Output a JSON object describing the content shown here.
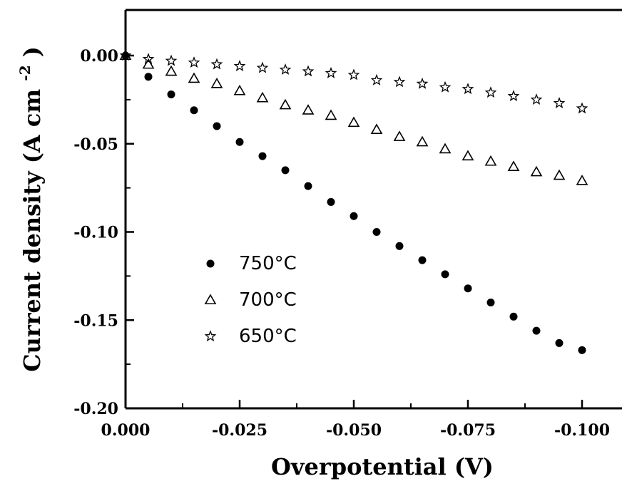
{
  "chart_data": {
    "type": "scatter",
    "title": "",
    "xlabel": "Overpotential  (V)",
    "ylabel": "Current density (A cm",
    "ylabel_superscript": "-2",
    "ylabel_close": ")",
    "xlim": [
      0.0,
      -0.1
    ],
    "ylim": [
      -0.2,
      0.025
    ],
    "x_ticks": [
      0.0,
      -0.025,
      -0.05,
      -0.075,
      -0.1
    ],
    "x_tick_labels": [
      "0.000",
      "-0.025",
      "-0.050",
      "-0.075",
      "-0.100"
    ],
    "y_ticks": [
      0.0,
      -0.05,
      -0.1,
      -0.15,
      -0.2
    ],
    "y_tick_labels": [
      "0.00",
      "-0.05",
      "-0.10",
      "-0.15",
      "-0.20"
    ],
    "grid": false,
    "legend_position": "bottom-left",
    "series": [
      {
        "name": "750°C",
        "marker": "filled-circle",
        "x": [
          0.0,
          -0.005,
          -0.01,
          -0.015,
          -0.02,
          -0.025,
          -0.03,
          -0.035,
          -0.04,
          -0.045,
          -0.05,
          -0.055,
          -0.06,
          -0.065,
          -0.07,
          -0.075,
          -0.08,
          -0.085,
          -0.09,
          -0.095,
          -0.1
        ],
        "y": [
          0.0,
          -0.012,
          -0.022,
          -0.031,
          -0.04,
          -0.049,
          -0.057,
          -0.065,
          -0.074,
          -0.083,
          -0.091,
          -0.1,
          -0.108,
          -0.116,
          -0.124,
          -0.132,
          -0.14,
          -0.148,
          -0.156,
          -0.163,
          -0.167
        ]
      },
      {
        "name": "700°C",
        "marker": "open-triangle",
        "x": [
          0.0,
          -0.005,
          -0.01,
          -0.015,
          -0.02,
          -0.025,
          -0.03,
          -0.035,
          -0.04,
          -0.045,
          -0.05,
          -0.055,
          -0.06,
          -0.065,
          -0.07,
          -0.075,
          -0.08,
          -0.085,
          -0.09,
          -0.095,
          -0.1
        ],
        "y": [
          0.0,
          -0.005,
          -0.009,
          -0.013,
          -0.016,
          -0.02,
          -0.024,
          -0.028,
          -0.031,
          -0.034,
          -0.038,
          -0.042,
          -0.046,
          -0.049,
          -0.053,
          -0.057,
          -0.06,
          -0.063,
          -0.066,
          -0.068,
          -0.071
        ]
      },
      {
        "name": "650°C",
        "marker": "open-star",
        "x": [
          0.0,
          -0.005,
          -0.01,
          -0.015,
          -0.02,
          -0.025,
          -0.03,
          -0.035,
          -0.04,
          -0.045,
          -0.05,
          -0.055,
          -0.06,
          -0.065,
          -0.07,
          -0.075,
          -0.08,
          -0.085,
          -0.09,
          -0.095,
          -0.1
        ],
        "y": [
          0.0,
          -0.002,
          -0.003,
          -0.004,
          -0.005,
          -0.006,
          -0.007,
          -0.008,
          -0.009,
          -0.01,
          -0.011,
          -0.014,
          -0.015,
          -0.016,
          -0.018,
          -0.019,
          -0.021,
          -0.023,
          -0.025,
          -0.027,
          -0.03
        ]
      }
    ]
  }
}
